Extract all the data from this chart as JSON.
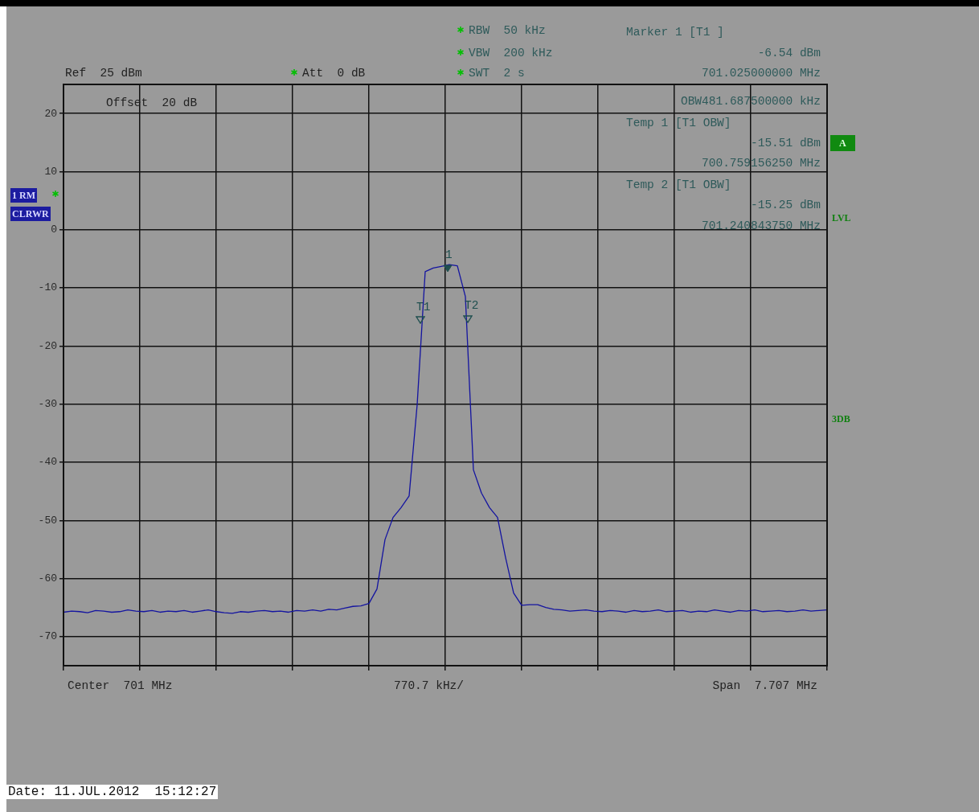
{
  "chart_data": {
    "type": "line",
    "categories": [
      null,
      null,
      null,
      null,
      null,
      null,
      null,
      null,
      null,
      null,
      null,
      null,
      null,
      null,
      null,
      null,
      null,
      null,
      null,
      null,
      null,
      null,
      null,
      null,
      null,
      null,
      null,
      null,
      null,
      null,
      null,
      null,
      null,
      null,
      null,
      null,
      null,
      null,
      null,
      null,
      null,
      null,
      null,
      null,
      null,
      null,
      null,
      null,
      null,
      null,
      null,
      null,
      null,
      null,
      null,
      null,
      null,
      null,
      null,
      null,
      null,
      null,
      null,
      null,
      null,
      null,
      null,
      null,
      null,
      null,
      null,
      null,
      null,
      null,
      null,
      null,
      null,
      null,
      null,
      null,
      null,
      null,
      null,
      null,
      null,
      null,
      null,
      null,
      null,
      null,
      null,
      null,
      null,
      null,
      null,
      null
    ],
    "ylim": [
      -75,
      25
    ],
    "yticks": [
      20,
      10,
      0,
      -10,
      -20,
      -30,
      -40,
      -50,
      -60,
      -70
    ],
    "tick_labels": "y",
    "grid": true,
    "legend": false,
    "series": [
      {
        "color": "#1414a0",
        "marker": "none",
        "values": [
          -65.8,
          -65.6,
          -65.7,
          -65.9,
          -65.5,
          -65.6,
          -65.8,
          -65.7,
          -65.4,
          -65.6,
          -65.7,
          -65.5,
          -65.8,
          -65.6,
          -65.7,
          -65.5,
          -65.8,
          -65.6,
          -65.4,
          -65.7,
          -65.9,
          -66.0,
          -65.7,
          -65.8,
          -65.6,
          -65.5,
          -65.7,
          -65.6,
          -65.8,
          -65.5,
          -65.6,
          -65.4,
          -65.6,
          -65.3,
          -65.4,
          -65.1,
          -64.8,
          -64.7,
          -64.3,
          -61.8,
          -53.3,
          -49.5,
          -47.8,
          -45.8,
          -30.1,
          -7.2,
          -6.6,
          -6.3,
          -6.0,
          -6.2,
          -11.5,
          -41.3,
          -45.3,
          -47.8,
          -49.5,
          -56.4,
          -62.5,
          -64.6,
          -64.5,
          -64.5,
          -65.0,
          -65.3,
          -65.4,
          -65.6,
          -65.5,
          -65.4,
          -65.6,
          -65.7,
          -65.5,
          -65.6,
          -65.8,
          -65.5,
          -65.7,
          -65.6,
          -65.4,
          -65.7,
          -65.6,
          -65.5,
          -65.8,
          -65.6,
          -65.7,
          -65.4,
          -65.6,
          -65.8,
          -65.5,
          -65.6,
          -65.4,
          -65.7,
          -65.6,
          -65.5,
          -65.7,
          -65.6,
          -65.4,
          -65.6,
          -65.5,
          -65.4
        ]
      }
    ],
    "annotations": [
      "RBW  50 kHz",
      "VBW  200 kHz",
      "SWT  2 s",
      "Ref  25 dBm",
      "Att  0 dB",
      "Offset  20 dB",
      "Marker 1 [T1 ]",
      "-6.54 dBm",
      "701.025000000 MHz",
      "OBW481.687500000 kHz",
      "Temp 1 [T1 OBW]",
      "-15.51 dBm",
      "700.759156250 MHz",
      "Temp 2 [T1 OBW]",
      "-15.25 dBm",
      "701.240843750 MHz",
      "1 RM",
      "CLRWR",
      "A",
      "LVL",
      "3DB",
      "Center  701 MHz",
      "770.7 kHz/",
      "Span  7.707 MHz",
      "Date: 11.JUL.2012  15:12:27",
      "1",
      "T1",
      "T2"
    ]
  }
}
